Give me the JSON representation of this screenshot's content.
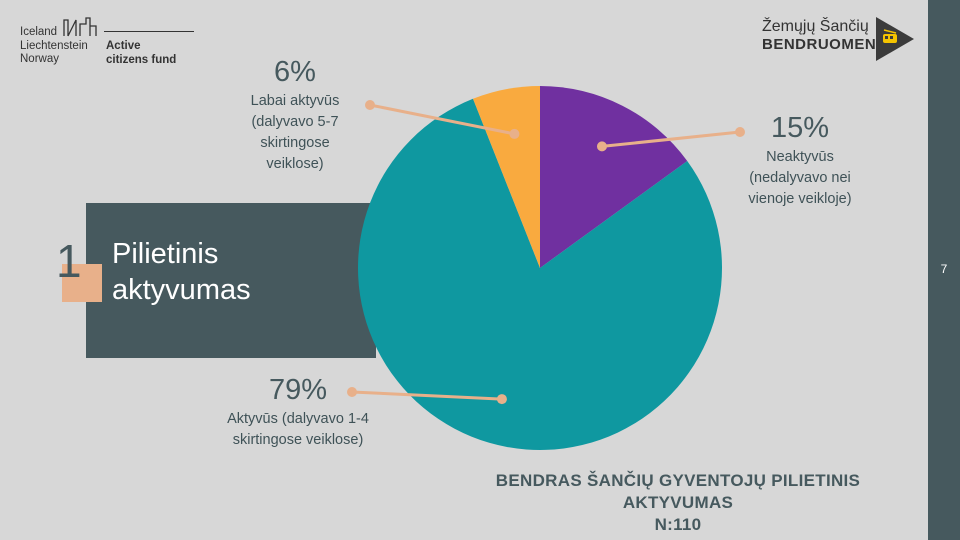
{
  "logo_left": {
    "countries": [
      "Iceland",
      "Liechtenstein",
      "Norway"
    ],
    "fund": [
      "Active",
      "citizens fund"
    ]
  },
  "logo_right": {
    "line1": "Žemųjų Šančių",
    "line2": "BENDRUOMENĖ"
  },
  "page_number": "7",
  "section": {
    "number": "1",
    "title_line1": "Pilietinis",
    "title_line2": "aktyvumas"
  },
  "colors": {
    "sidebar": "#46595e",
    "accent": "#e8b08a",
    "teal": "#0f98a0",
    "purple": "#7030a0",
    "orange": "#f9aa3f",
    "background": "#d7d7d7"
  },
  "chart_data": {
    "type": "pie",
    "title_line1": "BENDRAS ŠANČIŲ GYVENTOJŲ PILIETINIS AKTYVUMAS",
    "title_line2": "N:110",
    "slices": [
      {
        "pct_label": "15%",
        "value": 15,
        "color": "#7030a0",
        "desc": [
          "Neaktyvūs",
          "(nedalyvavo nei",
          "vienoje veikloje)"
        ]
      },
      {
        "pct_label": "79%",
        "value": 79,
        "color": "#0f98a0",
        "desc": [
          "Aktyvūs (dalyvavo 1-4",
          "skirtingose veiklose)"
        ]
      },
      {
        "pct_label": "6%",
        "value": 6,
        "color": "#f9aa3f",
        "desc": [
          "Labai aktyvūs",
          "(dalyvavo 5-7",
          "skirtingose",
          "veiklose)"
        ]
      }
    ]
  }
}
